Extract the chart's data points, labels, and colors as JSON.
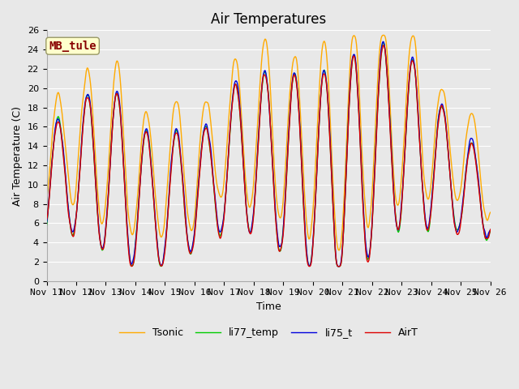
{
  "title": "Air Temperatures",
  "xlabel": "Time",
  "ylabel": "Air Temperature (C)",
  "ylim": [
    0,
    26
  ],
  "series": {
    "AirT": {
      "color": "#dd0000",
      "lw": 1.0
    },
    "li75_t": {
      "color": "#0000dd",
      "lw": 1.0
    },
    "li77_temp": {
      "color": "#00cc00",
      "lw": 1.0
    },
    "Tsonic": {
      "color": "#ffaa00",
      "lw": 1.0
    }
  },
  "annotation_text": "MB_tule",
  "annotation_color": "#880000",
  "annotation_bg": "#ffffcc",
  "annotation_edge": "#999966",
  "bg_color": "#e8e8e8",
  "grid_color": "white",
  "title_fontsize": 12,
  "axis_label_fontsize": 9,
  "tick_fontsize": 8,
  "legend_fontsize": 9,
  "x_tick_labels": [
    "Nov 11",
    "Nov 12",
    "Nov 13",
    "Nov 14",
    "Nov 15",
    "Nov 16",
    "Nov 17",
    "Nov 18",
    "Nov 19",
    "Nov 20",
    "Nov 21",
    "Nov 22",
    "Nov 23",
    "Nov 24",
    "Nov 25",
    "Nov 26"
  ],
  "n_points": 720
}
